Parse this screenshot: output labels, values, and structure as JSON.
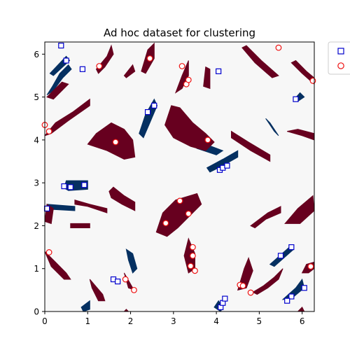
{
  "chart_data": {
    "type": "scatter",
    "title": "Ad hoc dataset for clustering",
    "xlabel": "",
    "ylabel": "",
    "xlim": [
      0,
      6.2832
    ],
    "ylim": [
      0,
      6.2832
    ],
    "xticks": [
      "0",
      "1",
      "2",
      "3",
      "4",
      "5",
      "6"
    ],
    "yticks": [
      "0",
      "1",
      "2",
      "3",
      "4",
      "5",
      "6"
    ],
    "grid": false,
    "legend": {
      "placement": "outside-top-right",
      "entries": [
        "",
        ""
      ]
    },
    "colors": {
      "background_field": "#f7f7f7",
      "cluster_a_fill": "#053061",
      "cluster_b_fill": "#67001f",
      "square_marker": "#0000cc",
      "circle_marker": "#ee1111"
    },
    "regions": {
      "blue": [
        [
          [
            0.05,
            5.05
          ],
          [
            0.18,
            5.25
          ],
          [
            0.35,
            5.55
          ],
          [
            0.55,
            5.75
          ],
          [
            0.62,
            5.65
          ],
          [
            0.42,
            5.45
          ],
          [
            0.2,
            5.15
          ]
        ],
        [
          [
            0.12,
            5.55
          ],
          [
            0.5,
            5.95
          ],
          [
            0.58,
            5.85
          ],
          [
            0.2,
            5.5
          ]
        ],
        [
          [
            2.2,
            4.15
          ],
          [
            2.35,
            4.6
          ],
          [
            2.55,
            4.95
          ],
          [
            2.62,
            4.8
          ],
          [
            2.45,
            4.4
          ],
          [
            2.3,
            4.05
          ]
        ],
        [
          [
            3.78,
            3.35
          ],
          [
            4.15,
            3.55
          ],
          [
            4.5,
            3.75
          ],
          [
            4.5,
            3.6
          ],
          [
            4.15,
            3.4
          ],
          [
            3.85,
            3.25
          ]
        ],
        [
          [
            3.55,
            3.8
          ],
          [
            4.0,
            3.65
          ],
          [
            4.15,
            3.75
          ],
          [
            3.7,
            3.92
          ]
        ],
        [
          [
            5.15,
            4.5
          ],
          [
            5.35,
            4.2
          ],
          [
            5.45,
            4.1
          ],
          [
            5.25,
            4.4
          ]
        ],
        [
          [
            0.45,
            2.88
          ],
          [
            0.5,
            3.05
          ],
          [
            1.0,
            3.05
          ],
          [
            1.0,
            2.85
          ],
          [
            0.55,
            2.82
          ]
        ],
        [
          [
            0.05,
            2.4
          ],
          [
            0.05,
            2.5
          ],
          [
            0.7,
            2.45
          ],
          [
            0.7,
            2.35
          ],
          [
            0.2,
            2.38
          ]
        ],
        [
          [
            1.9,
            1.45
          ],
          [
            2.05,
            1.35
          ],
          [
            2.15,
            1.0
          ],
          [
            2.05,
            0.9
          ],
          [
            1.95,
            1.2
          ]
        ],
        [
          [
            5.25,
            1.1
          ],
          [
            5.7,
            1.5
          ],
          [
            5.8,
            1.45
          ],
          [
            5.35,
            1.05
          ]
        ],
        [
          [
            5.55,
            0.28
          ],
          [
            5.85,
            0.55
          ],
          [
            6.0,
            0.75
          ],
          [
            6.05,
            0.55
          ],
          [
            5.75,
            0.3
          ]
        ],
        [
          [
            0.85,
            0.1
          ],
          [
            1.05,
            0.25
          ],
          [
            1.05,
            0.05
          ],
          [
            0.9,
            0.0
          ]
        ],
        [
          [
            3.95,
            0.1
          ],
          [
            4.05,
            0.25
          ],
          [
            4.15,
            0.1
          ],
          [
            4.1,
            0.0
          ]
        ],
        [
          [
            5.82,
            4.95
          ],
          [
            5.95,
            5.1
          ],
          [
            6.05,
            5.0
          ],
          [
            5.9,
            4.9
          ]
        ]
      ],
      "red": [
        [
          [
            0.0,
            4.1
          ],
          [
            0.25,
            4.4
          ],
          [
            0.65,
            4.65
          ],
          [
            1.05,
            4.95
          ],
          [
            1.05,
            4.8
          ],
          [
            0.55,
            4.45
          ],
          [
            0.15,
            4.15
          ]
        ],
        [
          [
            0.05,
            5.0
          ],
          [
            0.4,
            5.35
          ],
          [
            0.55,
            5.3
          ],
          [
            0.2,
            4.95
          ]
        ],
        [
          [
            1.2,
            5.65
          ],
          [
            1.45,
            5.95
          ],
          [
            1.55,
            6.2
          ],
          [
            1.6,
            6.0
          ],
          [
            1.4,
            5.7
          ],
          [
            1.25,
            5.55
          ]
        ],
        [
          [
            1.85,
            5.5
          ],
          [
            2.05,
            5.75
          ],
          [
            2.1,
            5.6
          ],
          [
            1.9,
            5.45
          ]
        ],
        [
          [
            2.25,
            5.6
          ],
          [
            2.4,
            6.1
          ],
          [
            2.55,
            6.25
          ],
          [
            2.55,
            5.9
          ],
          [
            2.35,
            5.55
          ]
        ],
        [
          [
            3.05,
            5.1
          ],
          [
            3.2,
            5.5
          ],
          [
            3.35,
            5.85
          ],
          [
            3.35,
            5.5
          ],
          [
            3.2,
            5.2
          ]
        ],
        [
          [
            3.7,
            5.25
          ],
          [
            3.75,
            5.7
          ],
          [
            3.85,
            5.65
          ],
          [
            3.85,
            5.2
          ]
        ],
        [
          [
            4.6,
            6.15
          ],
          [
            4.9,
            5.8
          ],
          [
            5.3,
            5.45
          ],
          [
            5.45,
            5.5
          ],
          [
            5.05,
            5.85
          ],
          [
            4.7,
            6.2
          ]
        ],
        [
          [
            5.85,
            5.85
          ],
          [
            6.1,
            5.6
          ],
          [
            6.28,
            5.45
          ],
          [
            6.28,
            5.3
          ],
          [
            6.0,
            5.55
          ],
          [
            5.75,
            5.8
          ]
        ],
        [
          [
            1.0,
            3.9
          ],
          [
            1.2,
            4.15
          ],
          [
            1.55,
            4.4
          ],
          [
            1.85,
            4.25
          ],
          [
            2.05,
            4.0
          ],
          [
            2.1,
            3.6
          ],
          [
            1.85,
            3.55
          ],
          [
            1.45,
            3.75
          ]
        ],
        [
          [
            2.8,
            4.35
          ],
          [
            2.95,
            4.8
          ],
          [
            3.15,
            4.75
          ],
          [
            3.45,
            4.4
          ],
          [
            3.75,
            4.15
          ],
          [
            3.95,
            3.95
          ],
          [
            3.75,
            3.75
          ],
          [
            3.4,
            3.85
          ],
          [
            3.0,
            4.05
          ]
        ],
        [
          [
            4.35,
            4.2
          ],
          [
            4.75,
            3.95
          ],
          [
            5.25,
            3.65
          ],
          [
            5.25,
            3.5
          ],
          [
            4.8,
            3.75
          ],
          [
            4.35,
            4.05
          ]
        ],
        [
          [
            5.65,
            4.2
          ],
          [
            6.0,
            4.1
          ],
          [
            6.28,
            4.0
          ],
          [
            6.28,
            4.15
          ],
          [
            5.9,
            4.25
          ]
        ],
        [
          [
            1.5,
            2.8
          ],
          [
            1.6,
            2.9
          ],
          [
            1.85,
            2.7
          ],
          [
            2.1,
            2.55
          ],
          [
            2.1,
            2.35
          ],
          [
            1.8,
            2.5
          ],
          [
            1.55,
            2.65
          ]
        ],
        [
          [
            0.7,
            2.6
          ],
          [
            1.05,
            2.5
          ],
          [
            1.45,
            2.4
          ],
          [
            1.45,
            2.3
          ],
          [
            1.0,
            2.45
          ],
          [
            0.7,
            2.5
          ]
        ],
        [
          [
            2.6,
            1.85
          ],
          [
            2.75,
            2.3
          ],
          [
            3.05,
            2.6
          ],
          [
            3.55,
            2.75
          ],
          [
            3.65,
            2.5
          ],
          [
            3.4,
            2.25
          ],
          [
            3.1,
            1.95
          ],
          [
            2.85,
            1.75
          ]
        ],
        [
          [
            4.8,
            2.0
          ],
          [
            5.2,
            2.3
          ],
          [
            5.5,
            2.45
          ],
          [
            5.5,
            2.3
          ],
          [
            5.15,
            2.15
          ],
          [
            4.9,
            1.95
          ]
        ],
        [
          [
            5.6,
            2.05
          ],
          [
            5.9,
            2.4
          ],
          [
            6.25,
            2.7
          ],
          [
            6.28,
            2.35
          ],
          [
            5.95,
            2.05
          ]
        ],
        [
          [
            0.0,
            2.1
          ],
          [
            0.05,
            2.5
          ],
          [
            0.2,
            2.4
          ],
          [
            0.15,
            2.05
          ]
        ],
        [
          [
            0.6,
            2.05
          ],
          [
            1.05,
            2.05
          ],
          [
            1.05,
            1.95
          ],
          [
            0.6,
            1.95
          ]
        ],
        [
          [
            0.0,
            1.4
          ],
          [
            0.25,
            1.15
          ],
          [
            0.5,
            0.9
          ],
          [
            0.6,
            0.75
          ],
          [
            0.45,
            0.75
          ],
          [
            0.15,
            1.05
          ]
        ],
        [
          [
            1.05,
            0.75
          ],
          [
            1.35,
            0.4
          ],
          [
            1.4,
            0.25
          ],
          [
            1.25,
            0.25
          ],
          [
            1.1,
            0.55
          ]
        ],
        [
          [
            1.85,
            0.9
          ],
          [
            2.05,
            0.55
          ],
          [
            2.1,
            0.5
          ],
          [
            1.95,
            0.55
          ]
        ],
        [
          [
            3.25,
            1.3
          ],
          [
            3.35,
            1.7
          ],
          [
            3.5,
            1.35
          ],
          [
            3.5,
            1.0
          ],
          [
            3.35,
            0.9
          ]
        ],
        [
          [
            4.5,
            0.5
          ],
          [
            4.65,
            1.0
          ],
          [
            4.75,
            1.25
          ],
          [
            4.85,
            0.95
          ],
          [
            4.7,
            0.55
          ]
        ],
        [
          [
            4.85,
            0.45
          ],
          [
            5.1,
            0.6
          ],
          [
            5.35,
            0.8
          ],
          [
            5.55,
            1.0
          ],
          [
            5.45,
            0.75
          ],
          [
            5.2,
            0.55
          ],
          [
            4.95,
            0.4
          ]
        ],
        [
          [
            6.0,
            0.9
          ],
          [
            6.1,
            1.1
          ],
          [
            6.28,
            1.15
          ],
          [
            6.28,
            1.0
          ],
          [
            6.15,
            0.9
          ]
        ],
        [
          [
            5.9,
            0.0
          ],
          [
            6.0,
            0.1
          ],
          [
            6.05,
            0.0
          ]
        ],
        [
          [
            1.85,
            0.0
          ],
          [
            1.9,
            0.05
          ],
          [
            1.95,
            0.0
          ]
        ]
      ]
    },
    "series": [
      {
        "name": "",
        "marker": "square",
        "points": [
          [
            0.38,
            6.2
          ],
          [
            0.5,
            5.85
          ],
          [
            0.88,
            5.65
          ],
          [
            4.05,
            5.6
          ],
          [
            5.85,
            4.95
          ],
          [
            2.55,
            4.8
          ],
          [
            2.4,
            4.65
          ],
          [
            4.08,
            3.3
          ],
          [
            4.15,
            3.35
          ],
          [
            4.25,
            3.4
          ],
          [
            0.45,
            2.92
          ],
          [
            0.6,
            2.9
          ],
          [
            0.92,
            2.95
          ],
          [
            0.05,
            2.4
          ],
          [
            1.6,
            0.75
          ],
          [
            1.7,
            0.7
          ],
          [
            5.75,
            1.5
          ],
          [
            5.5,
            1.3
          ],
          [
            6.05,
            0.55
          ],
          [
            5.75,
            0.35
          ],
          [
            5.65,
            0.25
          ],
          [
            4.1,
            0.1
          ],
          [
            4.15,
            0.2
          ],
          [
            4.2,
            0.3
          ]
        ]
      },
      {
        "name": "",
        "marker": "circle",
        "points": [
          [
            1.27,
            5.72
          ],
          [
            2.45,
            5.9
          ],
          [
            3.2,
            5.72
          ],
          [
            3.3,
            5.3
          ],
          [
            3.35,
            5.4
          ],
          [
            5.45,
            6.15
          ],
          [
            6.25,
            5.38
          ],
          [
            0.0,
            4.35
          ],
          [
            0.1,
            4.2
          ],
          [
            1.65,
            3.95
          ],
          [
            3.8,
            4.0
          ],
          [
            3.15,
            2.58
          ],
          [
            3.35,
            2.28
          ],
          [
            2.82,
            2.06
          ],
          [
            0.1,
            1.38
          ],
          [
            3.45,
            1.5
          ],
          [
            3.45,
            1.3
          ],
          [
            3.4,
            1.06
          ],
          [
            3.5,
            0.95
          ],
          [
            1.88,
            0.75
          ],
          [
            2.08,
            0.5
          ],
          [
            4.55,
            0.62
          ],
          [
            4.62,
            0.6
          ],
          [
            4.8,
            0.44
          ],
          [
            6.2,
            1.05
          ]
        ]
      }
    ]
  }
}
